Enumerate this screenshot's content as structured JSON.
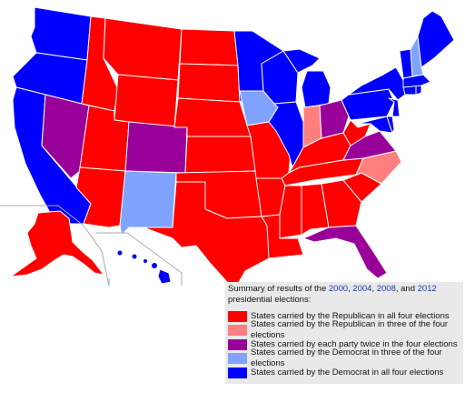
{
  "colors": {
    "rep_all_four": "#ff0000",
    "rep_three_of_four": "#ff7f7f",
    "split_two_each": "#990099",
    "dem_three_of_four": "#7fa3ff",
    "dem_all_four": "#0000ff",
    "state_border": "#ffffff",
    "inset_frame": "#aaaaaa"
  },
  "legend": {
    "title_prefix": "Summary of results of the ",
    "year_1": "2000",
    "sep_1": ", ",
    "year_2": "2004",
    "sep_2": ", ",
    "year_3": "2008",
    "sep_3": ", and ",
    "year_4": "2012",
    "title_suffix": " presidential elections:",
    "entries": [
      {
        "label": "States carried by the Republican in all four elections",
        "color": "#ff0000"
      },
      {
        "label": "States carried by the Republican in three of the four elections",
        "color": "#ff7f7f"
      },
      {
        "label": "States carried by each party twice in the four elections",
        "color": "#990099"
      },
      {
        "label": "States carried by the Democrat in three of the four elections",
        "color": "#7fa3ff"
      },
      {
        "label": "States carried by the Democrat in all four elections",
        "color": "#0000ff"
      }
    ]
  },
  "state_categories": {
    "rep_all_four": [
      "ID",
      "MT",
      "WY",
      "UT",
      "AZ",
      "ND",
      "SD",
      "NE",
      "KS",
      "OK",
      "TX",
      "MO",
      "AR",
      "LA",
      "KY",
      "TN",
      "MS",
      "AL",
      "GA",
      "SC",
      "WV",
      "AK"
    ],
    "rep_three_of_four": [
      "IN",
      "NC"
    ],
    "split_two_each": [
      "NV",
      "CO",
      "OH",
      "VA",
      "FL"
    ],
    "dem_three_of_four": [
      "IA",
      "NM",
      "NH"
    ],
    "dem_all_four": [
      "WA",
      "OR",
      "CA",
      "MN",
      "WI",
      "MI",
      "IL",
      "NY",
      "PA",
      "NJ",
      "DE",
      "MD",
      "VT",
      "ME",
      "MA",
      "CT",
      "RI",
      "HI"
    ]
  }
}
